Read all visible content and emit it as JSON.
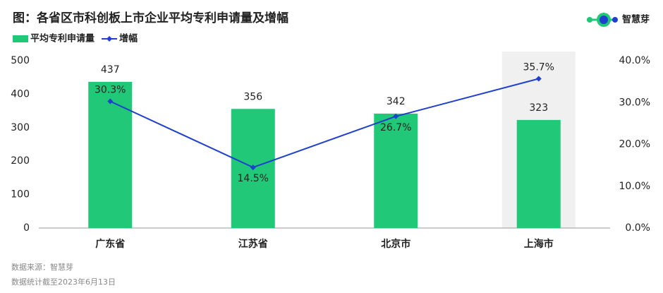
{
  "chart_data": {
    "type": "combo",
    "title": "图：各省区市科创板上市企业平均专利申请量及增幅",
    "brand": "智慧芽",
    "source": "数据来源：智慧芽",
    "note": "数据统计截至2023年6月13日",
    "categories": [
      "广东省",
      "江苏省",
      "北京市",
      "上海市"
    ],
    "highlight": 3,
    "series": [
      {
        "name": "平均专利申请量",
        "type": "bar",
        "color": "#21c878",
        "values": [
          437,
          356,
          342,
          323
        ]
      },
      {
        "name": "增幅",
        "type": "line",
        "axis": "y2",
        "color": "#1f3fcf",
        "values": [
          30.3,
          14.5,
          26.7,
          35.7
        ],
        "value_labels": [
          "30.3%",
          "14.5%",
          "26.7%",
          "35.7%"
        ]
      }
    ],
    "ylim": [
      0,
      500
    ],
    "yticks": [
      0,
      100,
      200,
      300,
      400,
      500
    ],
    "y2lim": [
      0,
      40
    ],
    "y2ticks": [
      {
        "value": 0,
        "label": "0.0%"
      },
      {
        "value": 10,
        "label": "10.0%"
      },
      {
        "value": 20,
        "label": "20.0%"
      },
      {
        "value": 30,
        "label": "30.0%"
      },
      {
        "value": 40,
        "label": "40.0%"
      }
    ]
  }
}
